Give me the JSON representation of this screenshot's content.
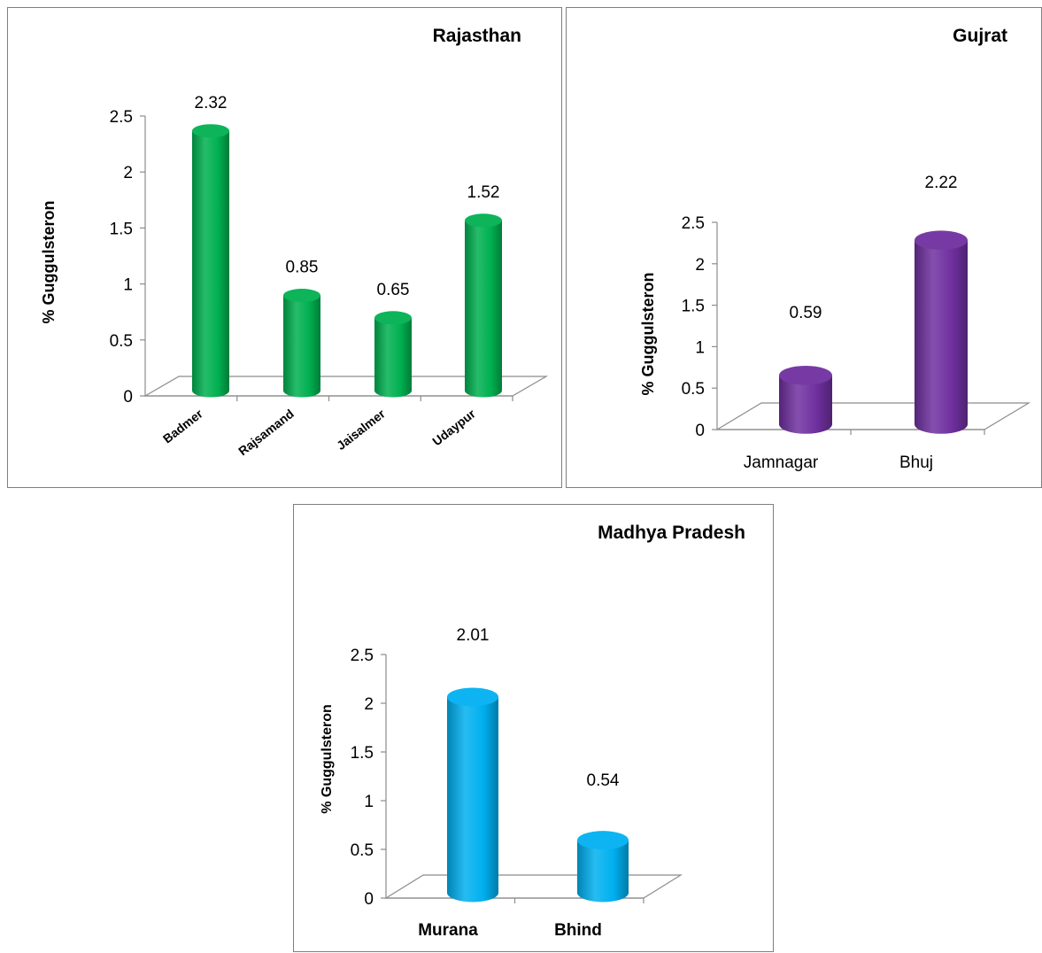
{
  "chart_data": [
    {
      "type": "bar",
      "title": "Rajasthan",
      "ylabel": "% Guggulsteron",
      "xlabel": "",
      "categories": [
        "Badmer",
        "Rajsamand",
        "Jaisalmer",
        "Udaypur"
      ],
      "values": [
        2.32,
        0.85,
        0.65,
        1.52
      ],
      "value_labels": [
        "2.32",
        "0.85",
        "0.65",
        "1.52"
      ],
      "yticks": [
        "0",
        "0.5",
        "1",
        "1.5",
        "2",
        "2.5"
      ],
      "ylim": [
        0,
        2.5
      ],
      "grid": false,
      "legend": "none",
      "color": "#00b050"
    },
    {
      "type": "bar",
      "title": "Gujrat",
      "ylabel": "% Guggulsteron",
      "xlabel": "",
      "categories": [
        "Jamnagar",
        "Bhuj"
      ],
      "values": [
        0.59,
        2.22
      ],
      "value_labels": [
        "0.59",
        "2.22"
      ],
      "yticks": [
        "0",
        "0.5",
        "1",
        "1.5",
        "2",
        "2.5"
      ],
      "ylim": [
        0,
        2.5
      ],
      "grid": false,
      "legend": "none",
      "color": "#7030a0"
    },
    {
      "type": "bar",
      "title": "Madhya Pradesh",
      "ylabel": "% Guggulsteron",
      "xlabel": "",
      "categories": [
        "Murana",
        "Bhind"
      ],
      "values": [
        2.01,
        0.54
      ],
      "value_labels": [
        "2.01",
        "0.54"
      ],
      "yticks": [
        "0",
        "0.5",
        "1",
        "1.5",
        "2",
        "2.5"
      ],
      "ylim": [
        0,
        2.5
      ],
      "grid": false,
      "legend": "none",
      "color": "#00b0f0"
    }
  ]
}
